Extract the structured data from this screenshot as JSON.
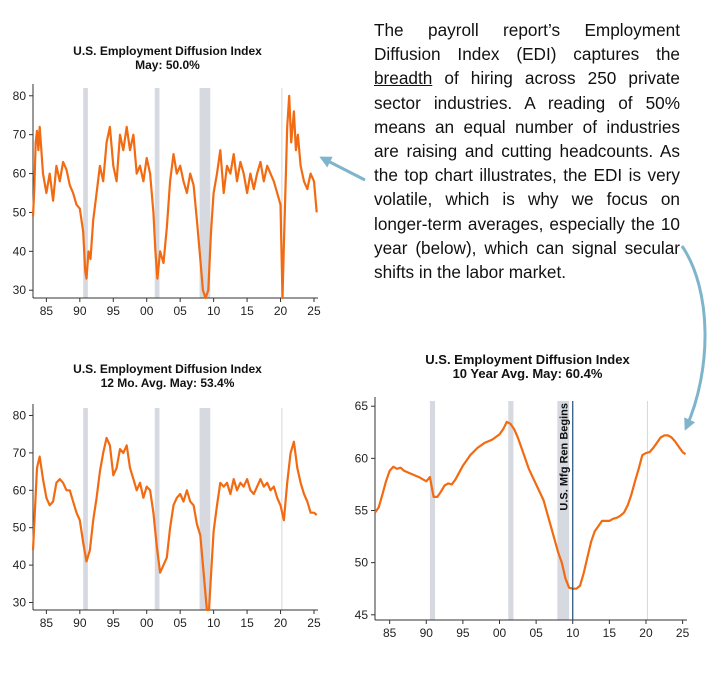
{
  "note": {
    "part1": "The payroll report’s Employment Diffusion Index (EDI) captures the ",
    "underlined": "breadth",
    "part2": " of hiring across 250 private sector industries. A reading of 50% means an equal number of industries are raising and cutting headcounts. As the top chart illustrates, the EDI is very volatile, which is why we focus on longer-term averages, especially the 10 year (below), which can signal secular shifts in the labor market."
  },
  "colors": {
    "series": "#f26b12",
    "recession": "#d6d9e0",
    "arrow": "#7fb5cc",
    "annotation_line": "#1f4e79"
  },
  "chart_data": [
    {
      "id": "monthly",
      "type": "line",
      "title_line1": "U.S. Employment Diffusion Index",
      "title_line2": "May: 50.0%",
      "xlim": [
        1983,
        2025.6
      ],
      "ylim": [
        28,
        82
      ],
      "x_ticks": [
        1985,
        1990,
        1995,
        2000,
        2005,
        2010,
        2015,
        2020,
        2025
      ],
      "x_tick_labels": [
        "85",
        "90",
        "95",
        "00",
        "05",
        "10",
        "15",
        "20",
        "25"
      ],
      "y_ticks": [
        30,
        40,
        50,
        60,
        70,
        80
      ],
      "recessions": [
        [
          1990.5,
          1991.2
        ],
        [
          2001.2,
          2001.9
        ],
        [
          2007.9,
          2009.5
        ]
      ],
      "reference_lines": [
        2020.2
      ],
      "x": [
        1983.0,
        1983.2,
        1983.4,
        1983.6,
        1983.8,
        1984.0,
        1984.5,
        1985.0,
        1985.5,
        1986.0,
        1986.5,
        1987.0,
        1987.5,
        1988.0,
        1988.5,
        1989.0,
        1989.5,
        1990.0,
        1990.5,
        1990.8,
        1991.0,
        1991.3,
        1991.6,
        1992.0,
        1992.5,
        1993.0,
        1993.5,
        1994.0,
        1994.5,
        1995.0,
        1995.5,
        1996.0,
        1996.5,
        1997.0,
        1997.5,
        1998.0,
        1998.5,
        1999.0,
        1999.5,
        2000.0,
        2000.5,
        2001.0,
        2001.3,
        2001.6,
        2002.0,
        2002.5,
        2003.0,
        2003.5,
        2004.0,
        2004.5,
        2005.0,
        2005.5,
        2006.0,
        2006.5,
        2007.0,
        2007.5,
        2008.0,
        2008.4,
        2008.8,
        2009.2,
        2009.6,
        2010.0,
        2010.5,
        2011.0,
        2011.5,
        2012.0,
        2012.5,
        2013.0,
        2013.5,
        2014.0,
        2014.5,
        2015.0,
        2015.5,
        2016.0,
        2016.5,
        2017.0,
        2017.5,
        2018.0,
        2018.5,
        2019.0,
        2019.5,
        2020.0,
        2020.3,
        2020.5,
        2020.8,
        2021.0,
        2021.3,
        2021.6,
        2022.0,
        2022.3,
        2022.6,
        2023.0,
        2023.5,
        2024.0,
        2024.5,
        2025.0,
        2025.4
      ],
      "y": [
        49,
        56,
        68,
        71,
        66,
        72,
        60,
        55,
        60,
        53,
        62,
        58,
        63,
        61,
        57,
        55,
        52,
        51,
        45,
        35,
        33,
        40,
        38,
        48,
        55,
        62,
        58,
        68,
        72,
        62,
        58,
        70,
        66,
        72,
        66,
        70,
        60,
        62,
        58,
        64,
        60,
        50,
        40,
        33,
        40,
        37,
        46,
        58,
        65,
        60,
        62,
        58,
        55,
        60,
        57,
        48,
        38,
        30,
        28,
        30,
        45,
        55,
        60,
        66,
        55,
        62,
        60,
        65,
        58,
        63,
        60,
        55,
        60,
        56,
        60,
        63,
        58,
        62,
        60,
        58,
        55,
        52,
        28,
        42,
        60,
        72,
        80,
        68,
        76,
        66,
        70,
        62,
        58,
        56,
        60,
        58,
        50
      ]
    },
    {
      "id": "12mo",
      "type": "line",
      "title_line1": "U.S. Employment Diffusion Index",
      "title_line2": "12 Mo. Avg. May: 53.4%",
      "xlim": [
        1983,
        2025.6
      ],
      "ylim": [
        28,
        82
      ],
      "x_ticks": [
        1985,
        1990,
        1995,
        2000,
        2005,
        2010,
        2015,
        2020,
        2025
      ],
      "x_tick_labels": [
        "85",
        "90",
        "95",
        "00",
        "05",
        "10",
        "15",
        "20",
        "25"
      ],
      "y_ticks": [
        30,
        40,
        50,
        60,
        70,
        80
      ],
      "recessions": [
        [
          1990.5,
          1991.2
        ],
        [
          2001.2,
          2001.9
        ],
        [
          2007.9,
          2009.5
        ]
      ],
      "reference_lines": [
        2020.2
      ],
      "x": [
        1983.0,
        1983.3,
        1983.6,
        1984.0,
        1984.5,
        1985.0,
        1985.5,
        1986.0,
        1986.5,
        1987.0,
        1987.5,
        1988.0,
        1988.5,
        1989.0,
        1989.5,
        1990.0,
        1990.5,
        1991.0,
        1991.5,
        1992.0,
        1992.5,
        1993.0,
        1993.5,
        1994.0,
        1994.5,
        1995.0,
        1995.5,
        1996.0,
        1996.5,
        1997.0,
        1997.5,
        1998.0,
        1998.5,
        1999.0,
        1999.5,
        2000.0,
        2000.5,
        2001.0,
        2001.5,
        2002.0,
        2002.5,
        2003.0,
        2003.5,
        2004.0,
        2004.5,
        2005.0,
        2005.5,
        2006.0,
        2006.5,
        2007.0,
        2007.5,
        2008.0,
        2008.5,
        2009.0,
        2009.3,
        2009.7,
        2010.0,
        2010.5,
        2011.0,
        2011.5,
        2012.0,
        2012.5,
        2013.0,
        2013.5,
        2014.0,
        2014.5,
        2015.0,
        2015.5,
        2016.0,
        2016.5,
        2017.0,
        2017.5,
        2018.0,
        2018.5,
        2019.0,
        2019.5,
        2020.0,
        2020.5,
        2021.0,
        2021.5,
        2022.0,
        2022.5,
        2023.0,
        2023.5,
        2024.0,
        2024.5,
        2025.0,
        2025.4
      ],
      "y": [
        44,
        55,
        66,
        69,
        63,
        58,
        56,
        57,
        62,
        63,
        62,
        60,
        60,
        57,
        54,
        52,
        46,
        41,
        44,
        52,
        58,
        65,
        70,
        74,
        72,
        64,
        66,
        71,
        70,
        72,
        66,
        63,
        60,
        62,
        58,
        61,
        60,
        54,
        45,
        38,
        40,
        42,
        50,
        56,
        58,
        59,
        57,
        60,
        57,
        56,
        51,
        48,
        38,
        28,
        28,
        40,
        49,
        56,
        62,
        61,
        62,
        59,
        63,
        60,
        62,
        61,
        63,
        60,
        59,
        61,
        63,
        61,
        62,
        60,
        61,
        58,
        56,
        52,
        62,
        70,
        73,
        66,
        62,
        59,
        57,
        54,
        54,
        53.4
      ]
    },
    {
      "id": "10yr",
      "type": "line",
      "title_line1": "U.S. Employment Diffusion Index",
      "title_line2": "10 Year Avg.   May: 60.4%",
      "xlim": [
        1983,
        2025.6
      ],
      "ylim": [
        44.5,
        65.5
      ],
      "x_ticks": [
        1985,
        1990,
        1995,
        2000,
        2005,
        2010,
        2015,
        2020,
        2025
      ],
      "x_tick_labels": [
        "85",
        "90",
        "95",
        "00",
        "05",
        "10",
        "15",
        "20",
        "25"
      ],
      "y_ticks": [
        45,
        50,
        55,
        60,
        65
      ],
      "recessions": [
        [
          1990.5,
          1991.2
        ],
        [
          2001.2,
          2001.9
        ],
        [
          2007.9,
          2009.5
        ]
      ],
      "reference_lines": [
        2020.2
      ],
      "annotation": {
        "text": "U.S. Mfg Ren Begins",
        "x": 2010.0
      },
      "x": [
        1983.0,
        1983.5,
        1984.0,
        1984.5,
        1985.0,
        1985.5,
        1986.0,
        1986.5,
        1987.0,
        1988.0,
        1989.0,
        1990.0,
        1990.5,
        1991.0,
        1991.5,
        1992.0,
        1992.5,
        1993.0,
        1993.5,
        1994.0,
        1995.0,
        1996.0,
        1997.0,
        1998.0,
        1999.0,
        2000.0,
        2000.5,
        2001.0,
        2001.5,
        2002.0,
        2002.5,
        2003.0,
        2004.0,
        2005.0,
        2006.0,
        2007.0,
        2008.0,
        2008.5,
        2009.0,
        2009.5,
        2010.0,
        2010.5,
        2011.0,
        2011.5,
        2012.0,
        2012.5,
        2013.0,
        2013.5,
        2014.0,
        2014.5,
        2015.0,
        2015.5,
        2016.0,
        2016.5,
        2017.0,
        2017.5,
        2018.0,
        2018.5,
        2019.0,
        2019.5,
        2020.0,
        2020.5,
        2021.0,
        2021.5,
        2022.0,
        2022.5,
        2023.0,
        2023.5,
        2024.0,
        2024.5,
        2025.0,
        2025.4
      ],
      "y": [
        54.8,
        55.3,
        56.5,
        57.8,
        58.8,
        59.2,
        59.0,
        59.1,
        58.8,
        58.5,
        58.2,
        57.8,
        58.2,
        56.3,
        56.3,
        56.8,
        57.4,
        57.6,
        57.5,
        58.0,
        59.3,
        60.3,
        61.0,
        61.5,
        61.8,
        62.3,
        62.8,
        63.5,
        63.3,
        62.8,
        62.0,
        61.0,
        59.0,
        57.5,
        56.0,
        53.5,
        51.0,
        50.0,
        48.5,
        47.6,
        47.5,
        47.5,
        47.8,
        49.0,
        50.5,
        52.0,
        53.0,
        53.5,
        54.0,
        54.0,
        54.0,
        54.2,
        54.3,
        54.5,
        54.8,
        55.5,
        56.5,
        57.8,
        59.0,
        60.3,
        60.5,
        60.6,
        61.0,
        61.5,
        62.0,
        62.2,
        62.2,
        62.0,
        61.6,
        61.1,
        60.6,
        60.4
      ]
    }
  ]
}
